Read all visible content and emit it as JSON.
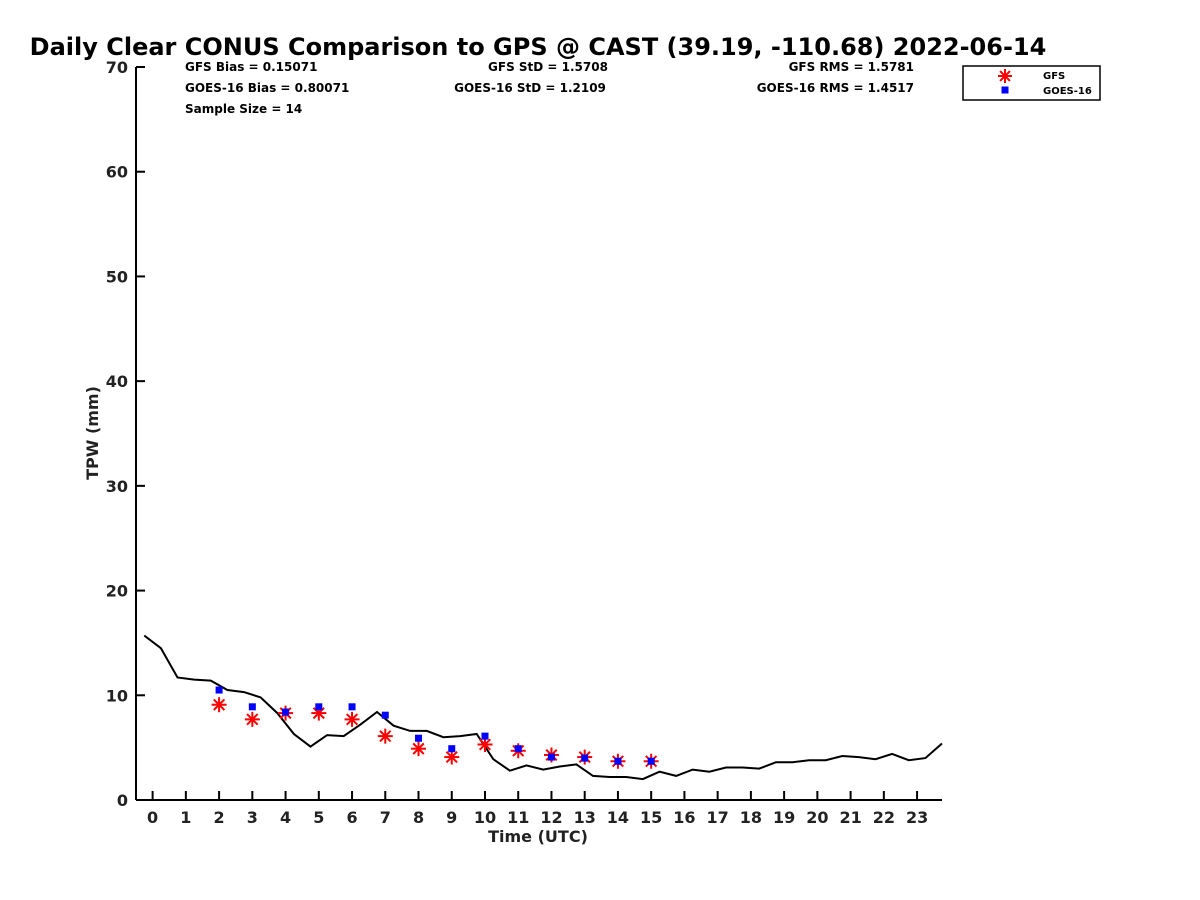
{
  "chart_data": {
    "type": "scatter",
    "title": "Daily Clear CONUS Comparison to GPS @ CAST (39.19, -110.68) 2022-06-14",
    "xlabel": "Time (UTC)",
    "ylabel": "TPW (mm)",
    "xlim": [
      -0.5,
      23.75
    ],
    "ylim": [
      0,
      70
    ],
    "x_ticks": [
      "0",
      "1",
      "2",
      "3",
      "4",
      "5",
      "6",
      "7",
      "8",
      "9",
      "10",
      "11",
      "12",
      "13",
      "14",
      "15",
      "16",
      "17",
      "18",
      "19",
      "20",
      "21",
      "22",
      "23"
    ],
    "y_ticks": [
      "0",
      "10",
      "20",
      "30",
      "40",
      "50",
      "60",
      "70"
    ],
    "grid": false,
    "legend_position": "top-right",
    "stats": {
      "gfs_bias": "GFS Bias = 0.15071",
      "goes_bias": "GOES-16 Bias = 0.80071",
      "sample_size": "Sample Size = 14",
      "gfs_std": "GFS StD = 1.5708",
      "goes_std": "GOES-16 StD = 1.2109",
      "gfs_rms": "GFS RMS = 1.5781",
      "goes_rms": "GOES-16 RMS = 1.4517"
    },
    "series": [
      {
        "name": "GFS",
        "color": "#ff0000",
        "marker": "asterisk",
        "x": [
          2,
          3,
          4,
          5,
          6,
          7,
          8,
          9,
          10,
          11,
          12,
          13,
          14,
          15
        ],
        "y": [
          9.1,
          7.7,
          8.3,
          8.3,
          7.7,
          6.1,
          4.9,
          4.1,
          5.3,
          4.7,
          4.3,
          4.1,
          3.7,
          3.7
        ]
      },
      {
        "name": "GOES-16",
        "color": "#0000ff",
        "marker": "square",
        "x": [
          2,
          3,
          4,
          5,
          6,
          7,
          8,
          9,
          10,
          11,
          12,
          13,
          14,
          15
        ],
        "y": [
          10.5,
          8.9,
          8.4,
          8.9,
          8.9,
          8.1,
          5.9,
          4.9,
          6.1,
          4.9,
          4.1,
          4.0,
          3.7,
          3.7
        ]
      },
      {
        "name": "",
        "color": "#000000",
        "marker": "line",
        "x": [
          -0.25,
          0.25,
          0.75,
          1.25,
          1.75,
          2.25,
          2.75,
          3.25,
          3.75,
          4.25,
          4.75,
          5.25,
          5.75,
          6.25,
          6.75,
          7.25,
          7.75,
          8.25,
          8.75,
          9.25,
          9.75,
          10.25,
          10.75,
          11.25,
          11.75,
          12.25,
          12.75,
          13.25,
          13.75,
          14.25,
          14.75,
          15.25,
          15.75,
          16.25,
          16.75,
          17.25,
          17.75,
          18.25,
          18.75,
          19.25,
          19.75,
          20.25,
          20.75,
          21.25,
          21.75,
          22.25,
          22.75,
          23.25,
          23.75
        ],
        "y": [
          15.7,
          14.5,
          11.7,
          11.5,
          11.4,
          10.5,
          10.3,
          9.8,
          8.3,
          6.3,
          5.1,
          6.2,
          6.1,
          7.2,
          8.4,
          7.1,
          6.6,
          6.6,
          6.0,
          6.1,
          6.3,
          3.9,
          2.8,
          3.3,
          2.9,
          3.2,
          3.4,
          2.3,
          2.2,
          2.2,
          2.0,
          2.7,
          2.3,
          2.9,
          2.7,
          3.1,
          3.1,
          3.0,
          3.6,
          3.6,
          3.8,
          3.8,
          4.2,
          4.1,
          3.9,
          4.4,
          3.8,
          4.0,
          5.4
        ]
      }
    ]
  }
}
